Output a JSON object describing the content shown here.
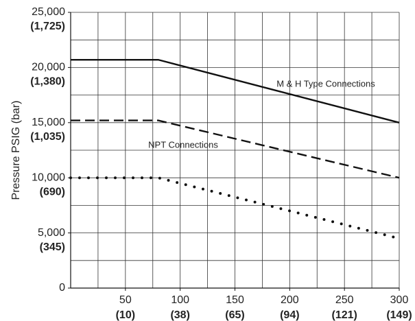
{
  "chart_data": {
    "type": "line",
    "ylabel": "Pressure PSIG (bar)",
    "xlim": [
      0,
      300
    ],
    "ylim": [
      0,
      25000
    ],
    "xticks": [
      {
        "value": 50,
        "label": "50",
        "sublabel": "(10)"
      },
      {
        "value": 100,
        "label": "100",
        "sublabel": "(38)"
      },
      {
        "value": 150,
        "label": "150",
        "sublabel": "(65)"
      },
      {
        "value": 200,
        "label": "200",
        "sublabel": "(94)"
      },
      {
        "value": 250,
        "label": "250",
        "sublabel": "(121)"
      },
      {
        "value": 300,
        "label": "300",
        "sublabel": "(149)"
      }
    ],
    "yticks": [
      0,
      {
        "value": 5000,
        "label": "5,000",
        "sublabel": "(345)"
      },
      {
        "value": 10000,
        "label": "10,000",
        "sublabel": "(690)"
      },
      {
        "value": 15000,
        "label": "15,000",
        "sublabel": "(1,035)"
      },
      {
        "value": 20000,
        "label": "20,000",
        "sublabel": "(1,380)"
      },
      {
        "value": 25000,
        "label": "25,000",
        "sublabel": "(1,725)"
      }
    ],
    "xgrid": [
      25,
      50,
      75,
      100,
      125,
      150,
      175,
      200,
      225,
      250,
      275,
      300
    ],
    "ygrid": [
      2500,
      5000,
      7500,
      10000,
      12500,
      15000,
      17500,
      20000,
      22500,
      25000
    ],
    "grid": true,
    "series": [
      {
        "name": "M & H Type Connections",
        "style": "solid",
        "color": "#111",
        "x": [
          0,
          80,
          300
        ],
        "values": [
          20700,
          20700,
          15000
        ]
      },
      {
        "name": "NPT Connections",
        "style": "dashed",
        "color": "#111",
        "x": [
          0,
          80,
          300
        ],
        "values": [
          15200,
          15200,
          10000
        ]
      },
      {
        "style": "dotted",
        "color": "#111",
        "x": [
          0,
          80,
          300
        ],
        "values": [
          10000,
          10000,
          4500
        ]
      }
    ]
  }
}
